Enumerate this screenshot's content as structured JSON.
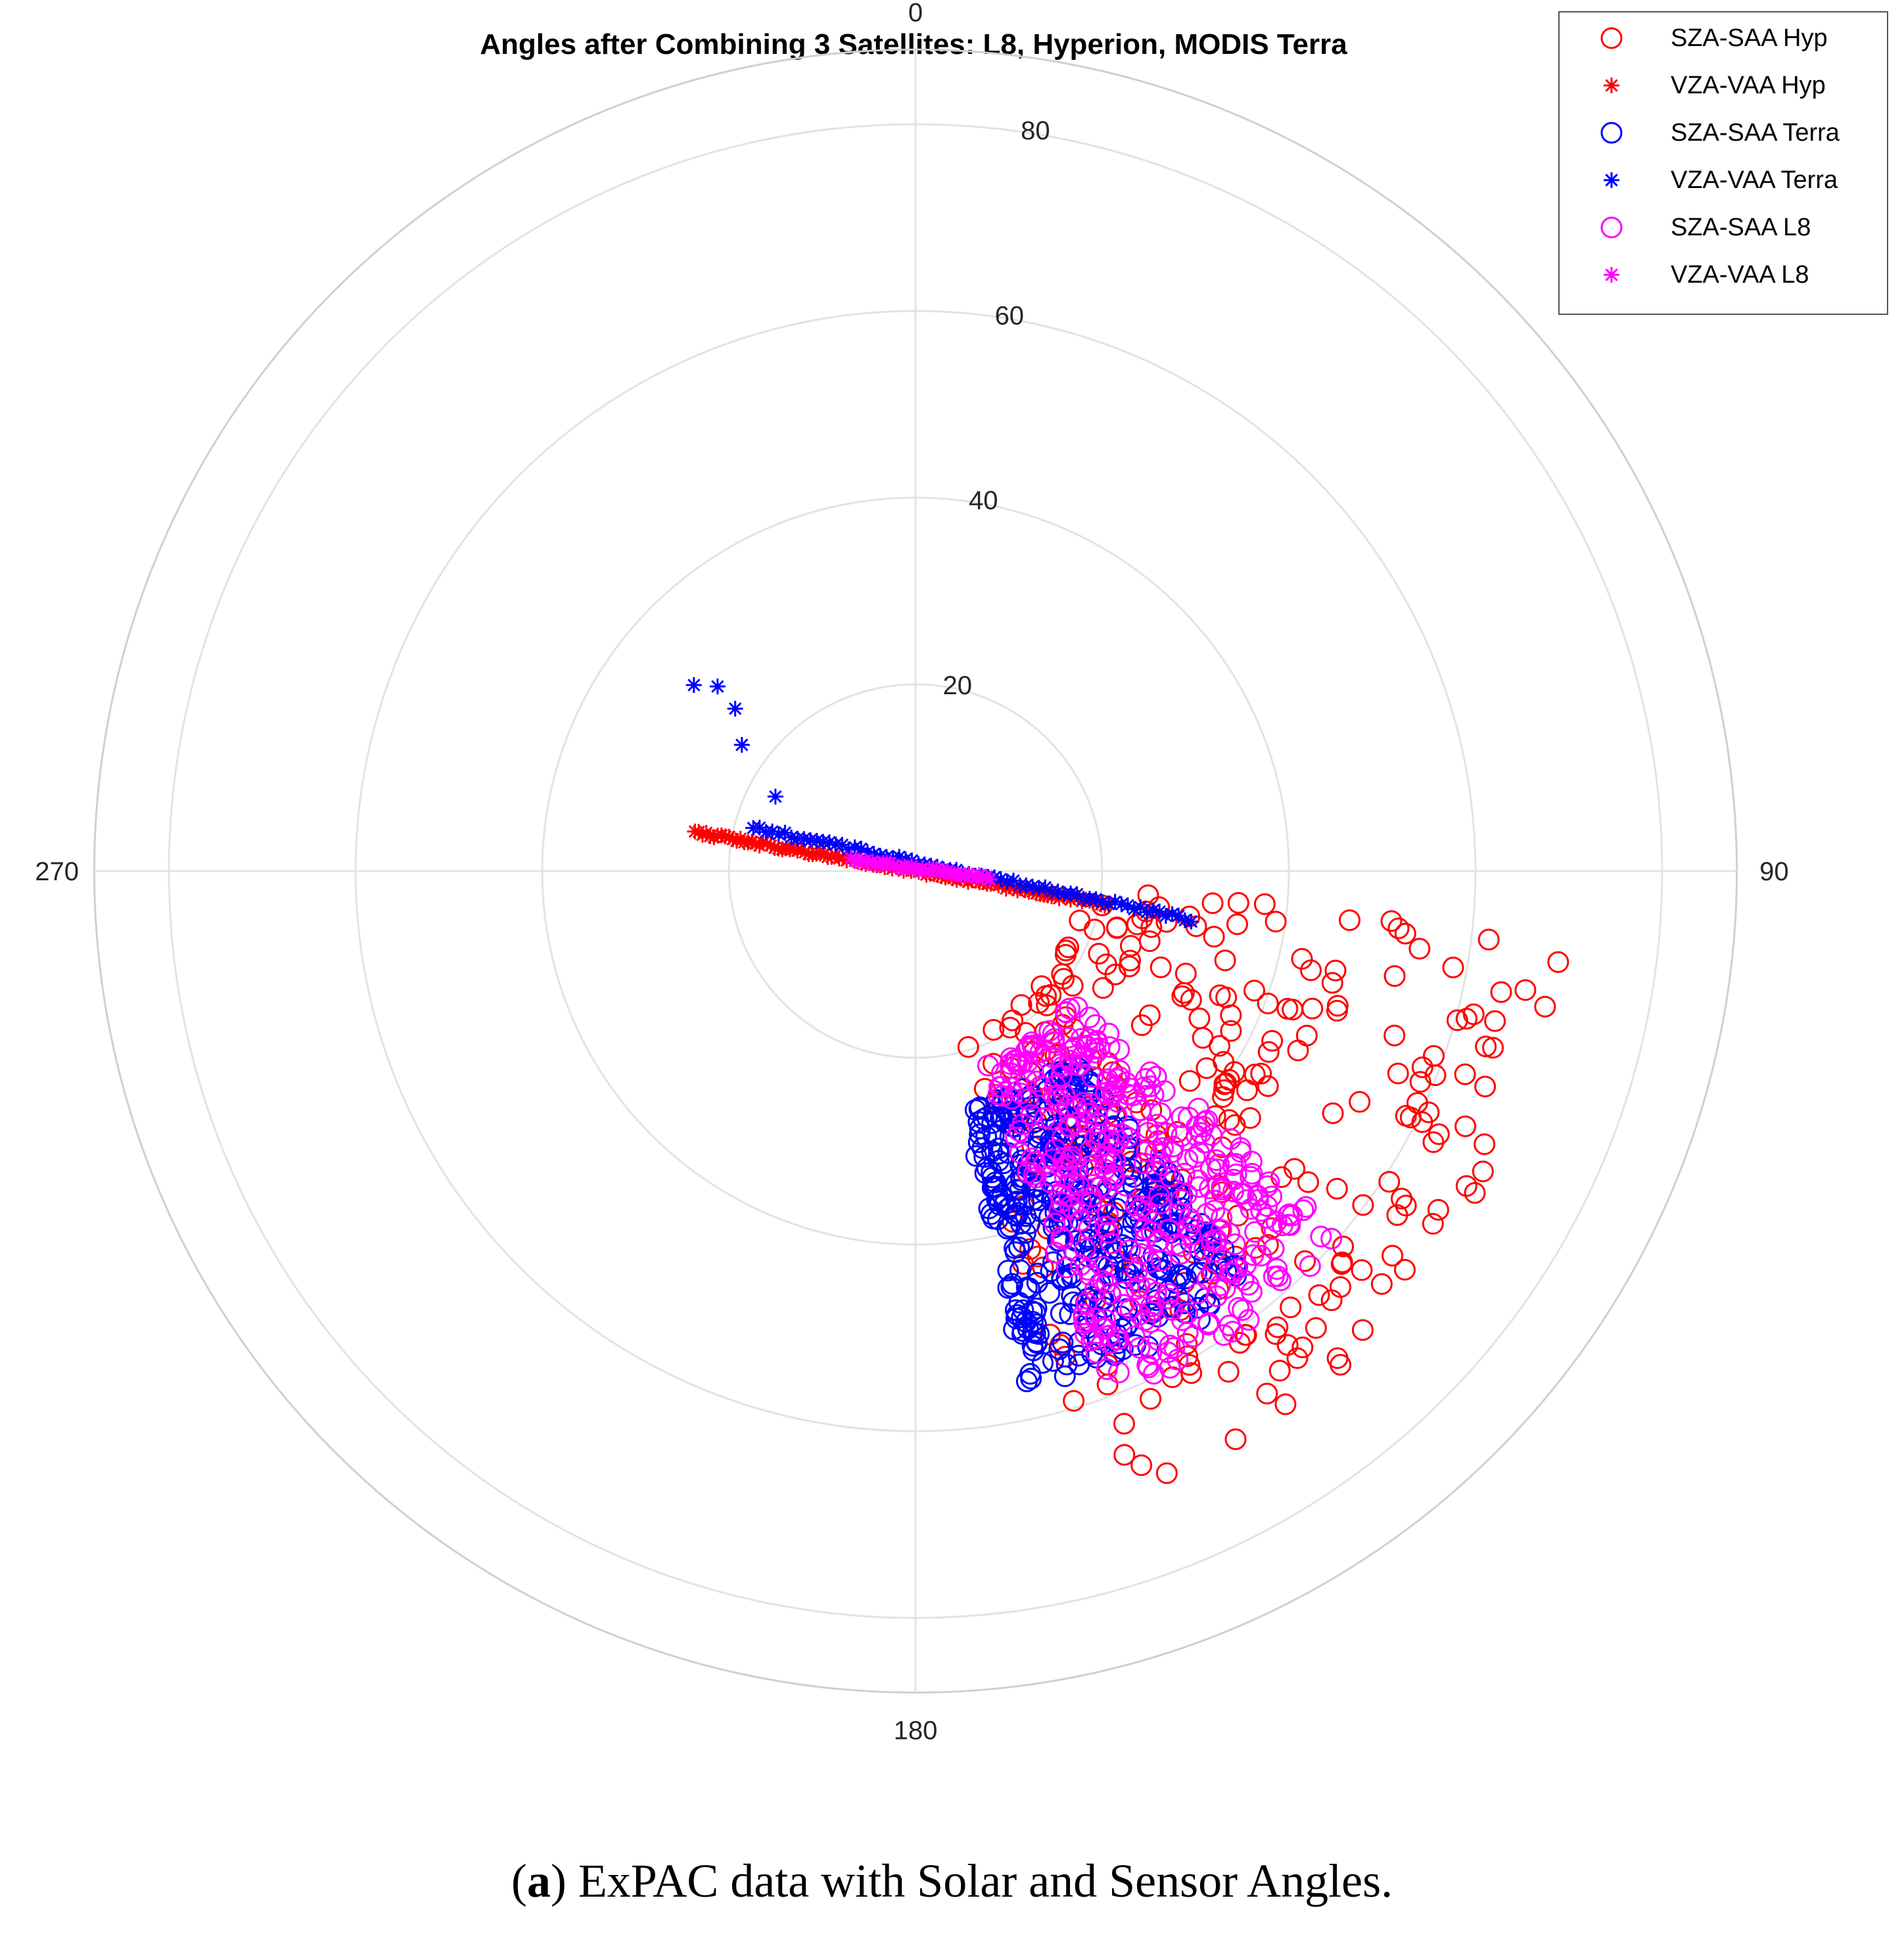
{
  "chart_data": {
    "type": "scatter",
    "subtype": "polar",
    "title": "Angles after Combining 3 Satellites: L8, Hyperion, MODIS Terra",
    "theta_ticks": [
      "0",
      "90",
      "180",
      "270"
    ],
    "theta_direction": "clockwise, 0 at top",
    "r_ticks": [
      "20",
      "40",
      "60",
      "80"
    ],
    "rlim": [
      0,
      88
    ],
    "grid": true,
    "legend_position": "top-right",
    "series": [
      {
        "name": "SZA-SAA Hyp",
        "marker": "circle",
        "color": "#ff0000",
        "cloud": {
          "theta": [
            95,
            165
          ],
          "r": [
            18,
            70
          ],
          "n": 280
        }
      },
      {
        "name": "VZA-VAA Hyp",
        "marker": "star",
        "color": "#ff0000",
        "line": {
          "from": [
            -80,
            24
          ],
          "to": [
            100,
            21
          ],
          "n": 110
        }
      },
      {
        "name": "SZA-SAA Terra",
        "marker": "circle",
        "color": "#0000ff",
        "cloud": {
          "theta": [
            140,
            168
          ],
          "r": [
            26,
            57
          ],
          "n": 420
        }
      },
      {
        "name": "VZA-VAA Terra",
        "marker": "star",
        "color": "#0000ff",
        "line": {
          "from": [
            -75,
            18
          ],
          "to": [
            100,
            30
          ],
          "n": 70
        },
        "points": [
          [
            -50,
            31
          ],
          [
            -47,
            29
          ],
          [
            -48,
            26
          ],
          [
            -54,
            23
          ],
          [
            -62,
            17
          ]
        ]
      },
      {
        "name": "SZA-SAA L8",
        "marker": "circle",
        "color": "#ff00ff",
        "cloud": {
          "theta": [
            130,
            160
          ],
          "r": [
            22,
            60
          ],
          "n": 380
        }
      },
      {
        "name": "VZA-VAA L8",
        "marker": "star",
        "color": "#ff00ff",
        "line": {
          "from": [
            -80,
            7
          ],
          "to": [
            95,
            8
          ],
          "n": 40
        }
      }
    ]
  },
  "caption": {
    "label": "a",
    "text": "ExPAC data with Solar and Sensor Angles."
  }
}
